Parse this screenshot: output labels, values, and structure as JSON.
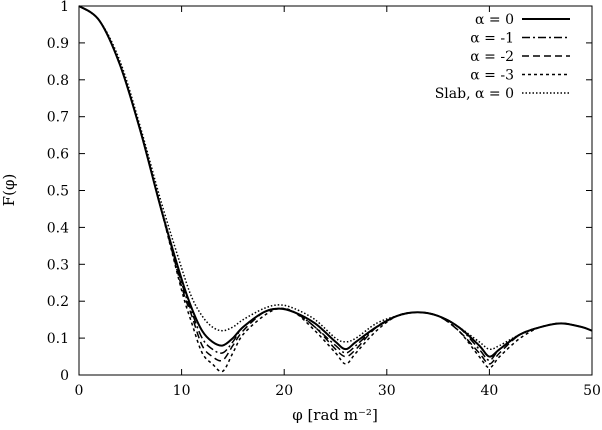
{
  "chart_data": {
    "type": "line",
    "xlabel": "φ [rad m⁻²]",
    "ylabel": "F(φ)",
    "xlim": [
      0,
      50
    ],
    "ylim": [
      0,
      1
    ],
    "xticks": [
      "0",
      "10",
      "20",
      "30",
      "40",
      "50"
    ],
    "yticks": [
      "0",
      "0.1",
      "0.2",
      "0.3",
      "0.4",
      "0.5",
      "0.6",
      "0.7",
      "0.8",
      "0.9",
      "1"
    ],
    "grid": false,
    "legend_position": "top-right",
    "series": [
      {
        "name": "α = 0",
        "dash": "solid",
        "x": [
          0,
          2,
          4,
          6,
          8,
          10,
          11,
          12,
          13,
          14,
          15,
          16,
          18,
          19.5,
          21,
          23,
          25,
          26,
          27,
          29,
          31,
          33,
          35,
          37,
          39,
          40,
          41,
          43,
          45,
          47,
          49,
          50
        ],
        "y": [
          1.0,
          0.96,
          0.84,
          0.66,
          0.45,
          0.26,
          0.18,
          0.12,
          0.09,
          0.08,
          0.1,
          0.13,
          0.17,
          0.18,
          0.17,
          0.14,
          0.09,
          0.07,
          0.09,
          0.13,
          0.16,
          0.17,
          0.16,
          0.13,
          0.08,
          0.05,
          0.07,
          0.11,
          0.13,
          0.14,
          0.13,
          0.12
        ]
      },
      {
        "name": "α = -1",
        "dash": "dash-dot",
        "x": [
          0,
          2,
          4,
          6,
          8,
          10,
          11,
          12,
          13,
          14,
          15,
          16,
          18,
          19.5,
          21,
          23,
          25,
          26,
          27,
          29,
          31,
          33,
          35,
          37,
          39,
          40,
          41,
          43,
          45,
          47,
          49,
          50
        ],
        "y": [
          1.0,
          0.96,
          0.84,
          0.66,
          0.45,
          0.25,
          0.17,
          0.1,
          0.07,
          0.06,
          0.09,
          0.13,
          0.17,
          0.18,
          0.17,
          0.13,
          0.08,
          0.06,
          0.08,
          0.13,
          0.16,
          0.17,
          0.16,
          0.13,
          0.07,
          0.04,
          0.07,
          0.11,
          0.13,
          0.14,
          0.13,
          0.12
        ]
      },
      {
        "name": "α = -2",
        "dash": "dashed",
        "x": [
          0,
          2,
          4,
          6,
          8,
          10,
          11,
          12,
          13,
          14,
          15,
          16,
          18,
          19.5,
          21,
          23,
          25,
          26,
          27,
          29,
          31,
          33,
          35,
          37,
          39,
          40,
          41,
          43,
          45,
          47,
          49,
          50
        ],
        "y": [
          1.0,
          0.96,
          0.84,
          0.66,
          0.45,
          0.24,
          0.16,
          0.08,
          0.05,
          0.04,
          0.08,
          0.12,
          0.17,
          0.18,
          0.17,
          0.13,
          0.07,
          0.05,
          0.07,
          0.13,
          0.16,
          0.17,
          0.16,
          0.12,
          0.06,
          0.03,
          0.06,
          0.11,
          0.13,
          0.14,
          0.13,
          0.12
        ]
      },
      {
        "name": "α = -3",
        "dash": "fine-dash",
        "x": [
          0,
          2,
          4,
          6,
          8,
          10,
          11,
          12,
          13,
          14,
          15,
          16,
          18,
          19.5,
          21,
          23,
          25,
          26,
          27,
          29,
          31,
          33,
          35,
          37,
          39,
          40,
          41,
          43,
          45,
          47,
          49,
          50
        ],
        "y": [
          1.0,
          0.96,
          0.84,
          0.66,
          0.45,
          0.23,
          0.14,
          0.06,
          0.03,
          0.01,
          0.06,
          0.11,
          0.16,
          0.18,
          0.17,
          0.12,
          0.06,
          0.03,
          0.06,
          0.12,
          0.16,
          0.17,
          0.16,
          0.12,
          0.05,
          0.02,
          0.05,
          0.1,
          0.13,
          0.14,
          0.13,
          0.12
        ]
      },
      {
        "name": "Slab, α = 0",
        "dash": "dotted",
        "x": [
          0,
          2,
          4,
          6,
          8,
          10,
          11,
          12,
          13,
          14,
          15,
          16,
          18,
          19.5,
          21,
          23,
          25,
          26,
          27,
          29,
          31,
          33,
          35,
          37,
          39,
          40,
          41,
          43,
          45,
          47,
          49,
          50
        ],
        "y": [
          1.0,
          0.96,
          0.85,
          0.67,
          0.47,
          0.29,
          0.21,
          0.16,
          0.13,
          0.12,
          0.13,
          0.15,
          0.18,
          0.19,
          0.18,
          0.15,
          0.1,
          0.09,
          0.1,
          0.14,
          0.16,
          0.17,
          0.16,
          0.13,
          0.09,
          0.07,
          0.08,
          0.11,
          0.13,
          0.14,
          0.13,
          0.12
        ]
      }
    ]
  }
}
